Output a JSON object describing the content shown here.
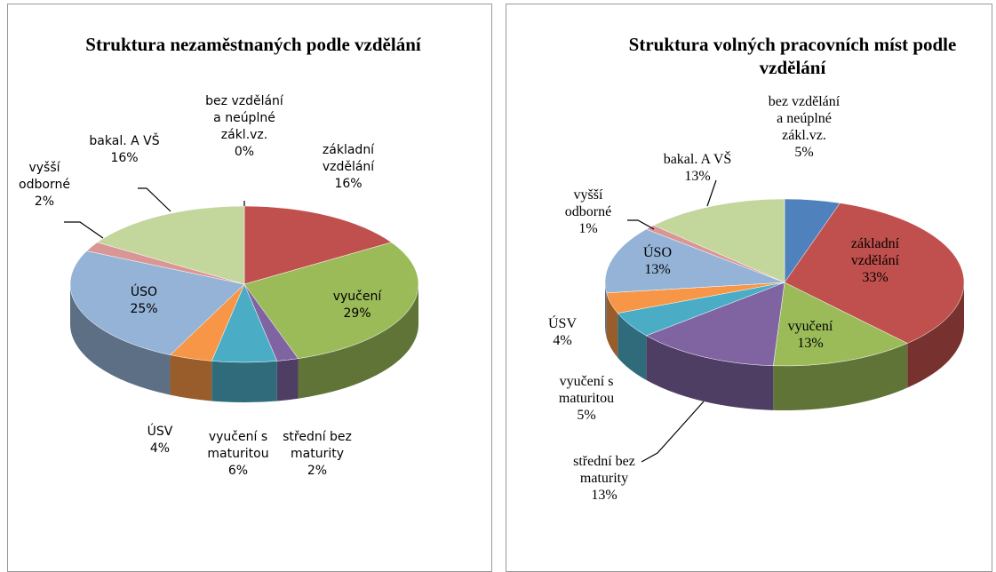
{
  "chart_data": [
    {
      "type": "pie",
      "title": "Struktura nezaměstnaných podle vzdělání",
      "categories": [
        "bez vzdělání a neúplné zákl.vz.",
        "základní vzdělání",
        "vyučení",
        "střední bez maturity",
        "vyučení s maturitou",
        "ÚSV",
        "ÚSO",
        "vyšší odborné",
        "bakal. A VŠ"
      ],
      "values": [
        0,
        16,
        29,
        2,
        6,
        4,
        25,
        2,
        16
      ],
      "value_labels": [
        "0%",
        "16%",
        "29%",
        "2%",
        "6%",
        "4%",
        "25%",
        "2%",
        "16%"
      ],
      "colors": [
        "#4f81bd",
        "#c0504d",
        "#9bbb59",
        "#8064a2",
        "#4bacc6",
        "#f79646",
        "#95b3d7",
        "#d99694",
        "#c3d69b"
      ]
    },
    {
      "type": "pie",
      "title": "Struktura volných pracovních míst podle vzdělání",
      "categories": [
        "bez vzdělání a neúplné zákl.vz.",
        "základní vzdělání",
        "vyučení",
        "střední bez maturity",
        "vyučení s maturitou",
        "ÚSV",
        "ÚSO",
        "vyšší odborné",
        "bakal. A VŠ"
      ],
      "values": [
        5,
        33,
        13,
        13,
        5,
        4,
        13,
        1,
        13
      ],
      "value_labels": [
        "5%",
        "33%",
        "13%",
        "13%",
        "5%",
        "4%",
        "13%",
        "1%",
        "13%"
      ],
      "colors": [
        "#4f81bd",
        "#c0504d",
        "#9bbb59",
        "#8064a2",
        "#4bacc6",
        "#f79646",
        "#95b3d7",
        "#d99694",
        "#c3d69b"
      ]
    }
  ]
}
